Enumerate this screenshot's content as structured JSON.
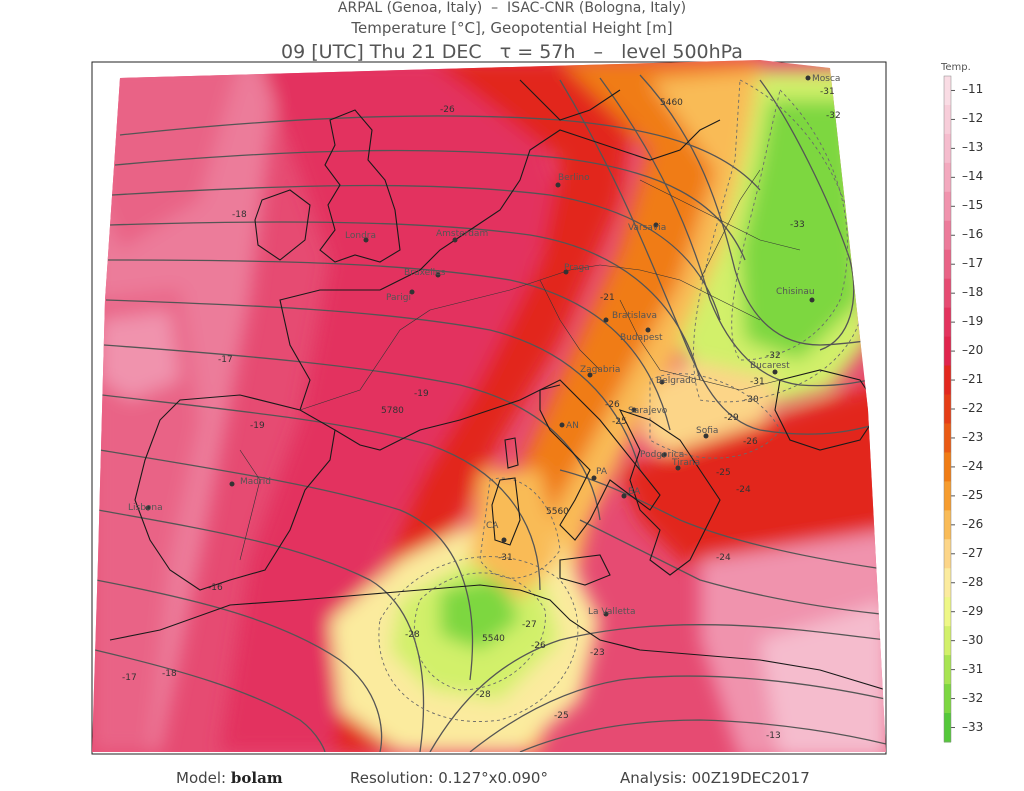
{
  "header": {
    "line1": "ARPAL (Genoa, Italy)  –  ISAC-CNR (Bologna, Italy)",
    "line2": "Temperature [°C], Geopotential Height [m]",
    "line3": "09 [UTC] Thu 21 DEC   τ = 57h   –   level 500hPa"
  },
  "footer": {
    "model_label": "Model:",
    "model_value": "bolam",
    "resolution": "Resolution: 0.127°x0.090°",
    "analysis": "Analysis: 00Z19DEC2017"
  },
  "legend": {
    "title": "Temp.",
    "levels": [
      -11,
      -12,
      -13,
      -14,
      -15,
      -16,
      -17,
      -18,
      -19,
      -20,
      -21,
      -22,
      -23,
      -24,
      -25,
      -26,
      -27,
      -28,
      -29,
      -30,
      -31,
      -32,
      -33
    ],
    "colors": [
      "#f9dce4",
      "#f7cdd9",
      "#f5bccd",
      "#f3a9be",
      "#f093ad",
      "#ec7b9a",
      "#e96386",
      "#e64b72",
      "#e3335e",
      "#e0254d",
      "#e2281e",
      "#e53d16",
      "#ea5a13",
      "#f07c14",
      "#f69c2e",
      "#f9bb57",
      "#fcd588",
      "#fbeb9e",
      "#eef786",
      "#d2f06a",
      "#a8e452",
      "#7dd741",
      "#55c83a"
    ]
  },
  "map": {
    "cities": [
      {
        "name": "Mosca"
      },
      {
        "name": "Madrid"
      },
      {
        "name": "Lisbona"
      },
      {
        "name": "Bucarest"
      },
      {
        "name": "Chisinau"
      },
      {
        "name": "Budapest"
      },
      {
        "name": "Belgrado"
      },
      {
        "name": "Sofia"
      },
      {
        "name": "Podgorica"
      },
      {
        "name": "Sarajevo"
      },
      {
        "name": "Zagabria"
      },
      {
        "name": "Varsavia"
      },
      {
        "name": "Praga"
      },
      {
        "name": "Bratislava"
      },
      {
        "name": "Berlino"
      },
      {
        "name": "Londra"
      },
      {
        "name": "Parigi"
      },
      {
        "name": "Bruxelles"
      },
      {
        "name": "Amsterdam"
      },
      {
        "name": "Tirana"
      },
      {
        "name": "La Valletta"
      },
      {
        "name": "BA"
      },
      {
        "name": "AN"
      },
      {
        "name": "CA"
      },
      {
        "name": "PA"
      }
    ],
    "temp_labels": [
      "-31",
      "-32",
      "-33",
      "-32",
      "-31",
      "-30",
      "-29",
      "-26",
      "-26",
      "-25",
      "-24",
      "-24",
      "-26",
      "-25",
      "-19",
      "-18",
      "-17",
      "-17",
      "-18",
      "-16",
      "-13",
      "-31",
      "-28",
      "-28",
      "-27",
      "-26",
      "-25",
      "-23",
      "-21",
      "-19"
    ],
    "height_labels": [
      "5560",
      "5540",
      "5460",
      "5780"
    ]
  }
}
